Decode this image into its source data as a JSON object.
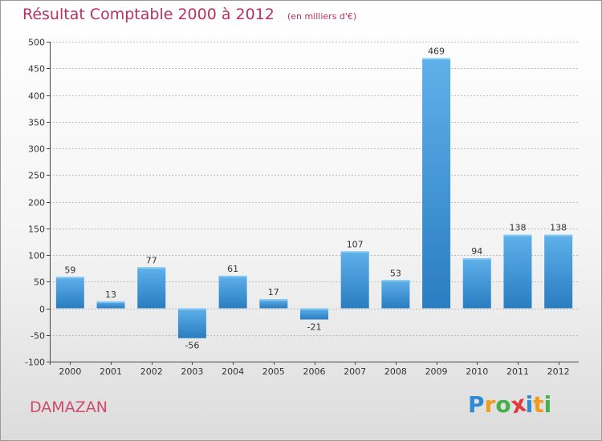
{
  "header": {
    "title": "Résultat Comptable 2000 à 2012",
    "subtitle": "(en milliers d'€)"
  },
  "footer": {
    "commune": "DAMAZAN",
    "brand_letters": [
      "P",
      "r",
      "o",
      "x",
      "i",
      "t",
      "i"
    ],
    "brand_colors": [
      "#2f8ad6",
      "#f09a1e",
      "#46b04a",
      "#e23a3a",
      "#2f8ad6",
      "#f09a1e",
      "#46b04a"
    ]
  },
  "colors": {
    "title": "#b8325e",
    "bar_light": "#5eb1ea",
    "bar_dark": "#2a7dc0",
    "axis": "#444444",
    "grid": "#bdbdbd"
  },
  "chart_data": {
    "type": "bar",
    "title": "Résultat Comptable 2000 à 2012",
    "unit": "(en milliers d'€)",
    "xlabel": "",
    "ylabel": "",
    "categories": [
      "2000",
      "2001",
      "2002",
      "2003",
      "2004",
      "2005",
      "2006",
      "2007",
      "2008",
      "2009",
      "2010",
      "2011",
      "2012"
    ],
    "values": [
      59,
      13,
      77,
      -56,
      61,
      17,
      -21,
      107,
      53,
      469,
      94,
      138,
      138
    ],
    "data_labels": [
      "59",
      "13",
      "77",
      "-56",
      "61",
      "17",
      "-21",
      "107",
      "53",
      "469",
      "94",
      "138",
      "138"
    ],
    "ylim": [
      -100,
      500
    ],
    "yticks": [
      -100,
      -50,
      0,
      50,
      100,
      150,
      200,
      250,
      300,
      350,
      400,
      450,
      500
    ],
    "grid": true
  }
}
